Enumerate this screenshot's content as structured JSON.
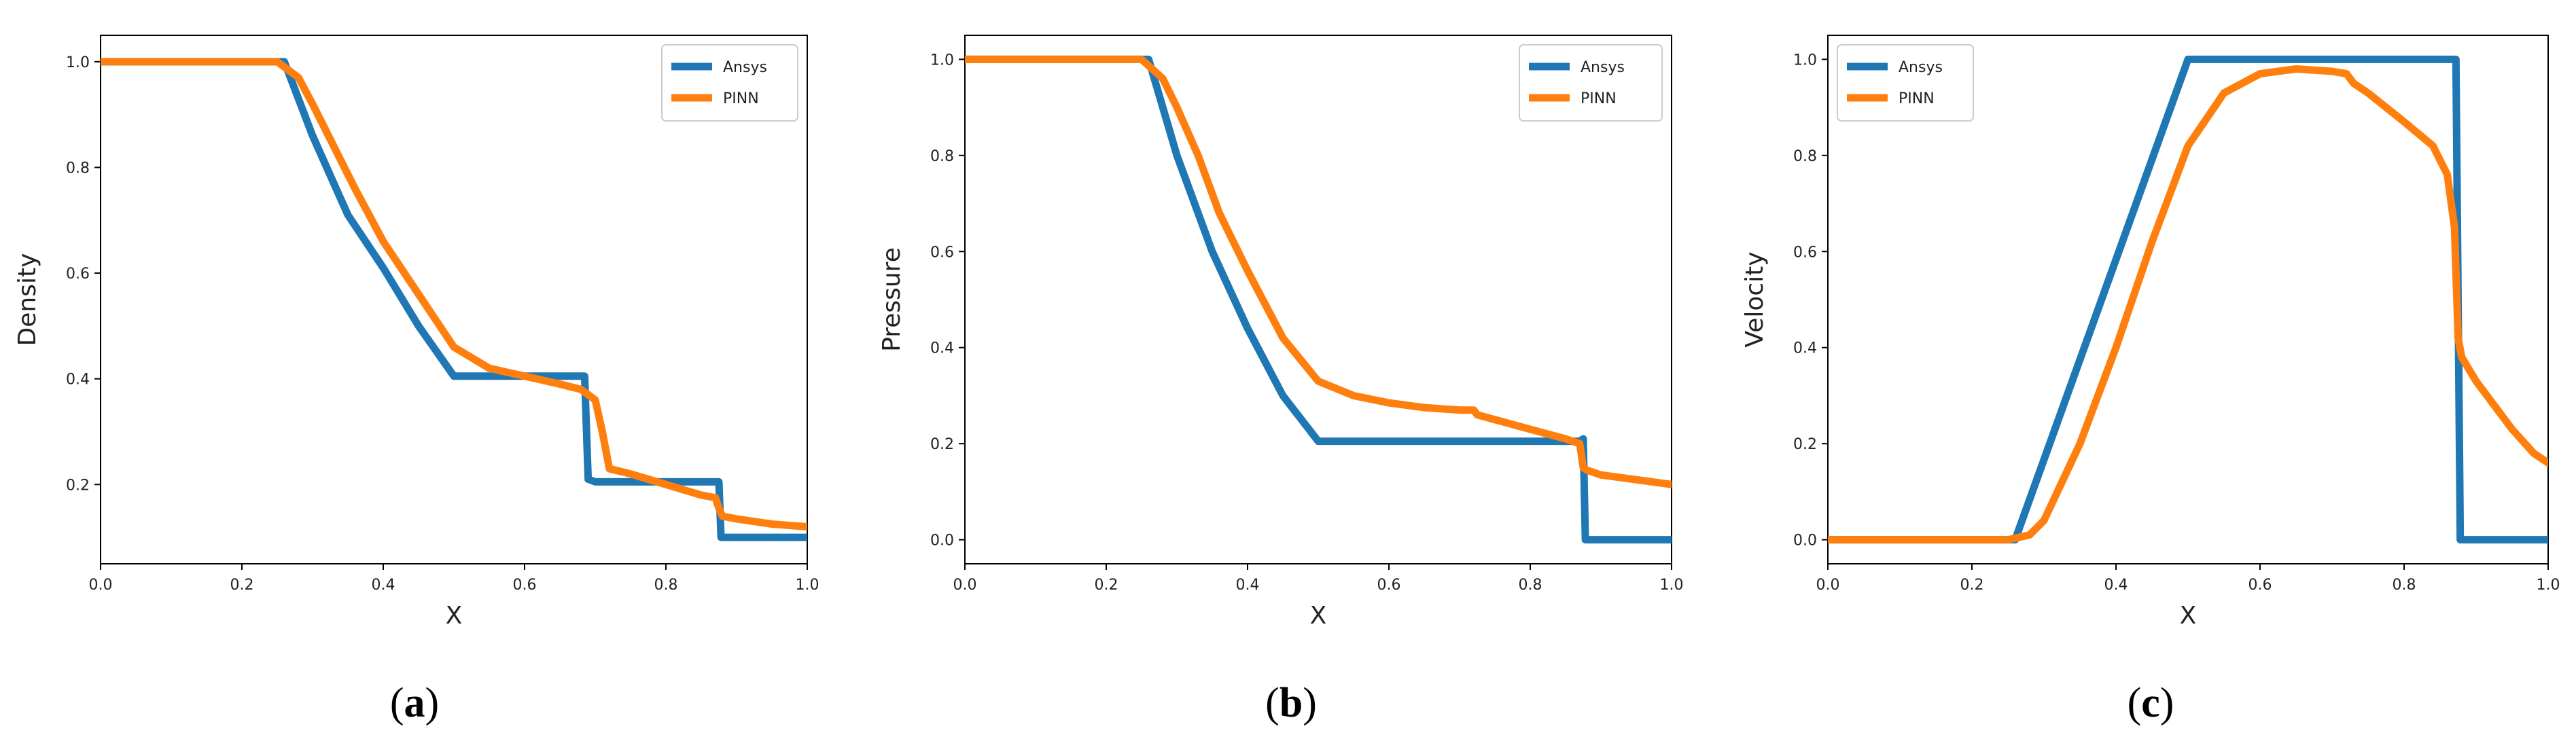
{
  "colors": {
    "ansys": "#1f77b4",
    "pinn": "#ff7f0e"
  },
  "chart_data": [
    {
      "type": "line",
      "panel": "a",
      "caption": "(a)",
      "caption_open": "(",
      "caption_letter": "a",
      "caption_close": ")",
      "xlabel": "X",
      "ylabel": "Density",
      "xlim": [
        0.0,
        1.0
      ],
      "ylim": [
        0.05,
        1.05
      ],
      "xticks": [
        0.0,
        0.2,
        0.4,
        0.6,
        0.8,
        1.0
      ],
      "xtick_labels": [
        "0.0",
        "0.2",
        "0.4",
        "0.6",
        "0.8",
        "1.0"
      ],
      "yticks": [
        0.2,
        0.4,
        0.6,
        0.8,
        1.0
      ],
      "ytick_labels": [
        "0.2",
        "0.4",
        "0.6",
        "0.8",
        "1.0"
      ],
      "grid": false,
      "legend": "top-right",
      "series": [
        {
          "name": "Ansys",
          "color": "#1f77b4",
          "x": [
            0.0,
            0.26,
            0.3,
            0.35,
            0.4,
            0.45,
            0.5,
            0.685,
            0.69,
            0.7,
            0.875,
            0.878,
            1.0
          ],
          "y": [
            1.0,
            1.0,
            0.86,
            0.71,
            0.61,
            0.5,
            0.405,
            0.405,
            0.21,
            0.205,
            0.205,
            0.1,
            0.1
          ]
        },
        {
          "name": "PINN",
          "color": "#ff7f0e",
          "x": [
            0.0,
            0.2,
            0.25,
            0.28,
            0.3,
            0.33,
            0.36,
            0.4,
            0.45,
            0.5,
            0.55,
            0.6,
            0.65,
            0.68,
            0.7,
            0.71,
            0.72,
            0.75,
            0.8,
            0.85,
            0.87,
            0.875,
            0.88,
            0.9,
            0.95,
            1.0
          ],
          "y": [
            1.0,
            1.0,
            1.0,
            0.97,
            0.92,
            0.84,
            0.76,
            0.66,
            0.56,
            0.46,
            0.42,
            0.405,
            0.39,
            0.38,
            0.36,
            0.3,
            0.23,
            0.22,
            0.2,
            0.18,
            0.175,
            0.155,
            0.14,
            0.135,
            0.125,
            0.12
          ]
        }
      ]
    },
    {
      "type": "line",
      "panel": "b",
      "caption": "(b)",
      "caption_open": "(",
      "caption_letter": "b",
      "caption_close": ")",
      "xlabel": "X",
      "ylabel": "Pressure",
      "xlim": [
        0.0,
        1.0
      ],
      "ylim": [
        -0.05,
        1.05
      ],
      "xticks": [
        0.0,
        0.2,
        0.4,
        0.6,
        0.8,
        1.0
      ],
      "xtick_labels": [
        "0.0",
        "0.2",
        "0.4",
        "0.6",
        "0.8",
        "1.0"
      ],
      "yticks": [
        0.0,
        0.2,
        0.4,
        0.6,
        0.8,
        1.0
      ],
      "ytick_labels": [
        "0.0",
        "0.2",
        "0.4",
        "0.6",
        "0.8",
        "1.0"
      ],
      "grid": false,
      "legend": "top-right",
      "series": [
        {
          "name": "Ansys",
          "color": "#1f77b4",
          "x": [
            0.0,
            0.26,
            0.3,
            0.35,
            0.4,
            0.45,
            0.5,
            0.87,
            0.875,
            0.878,
            1.0
          ],
          "y": [
            1.0,
            1.0,
            0.8,
            0.6,
            0.44,
            0.3,
            0.205,
            0.205,
            0.21,
            0.0,
            0.0
          ]
        },
        {
          "name": "PINN",
          "color": "#ff7f0e",
          "x": [
            0.0,
            0.22,
            0.25,
            0.28,
            0.3,
            0.33,
            0.36,
            0.4,
            0.45,
            0.5,
            0.55,
            0.6,
            0.65,
            0.7,
            0.72,
            0.725,
            0.75,
            0.8,
            0.85,
            0.87,
            0.875,
            0.88,
            0.9,
            0.95,
            1.0
          ],
          "y": [
            1.0,
            1.0,
            1.0,
            0.96,
            0.9,
            0.8,
            0.68,
            0.56,
            0.42,
            0.33,
            0.3,
            0.285,
            0.275,
            0.27,
            0.27,
            0.26,
            0.25,
            0.23,
            0.21,
            0.2,
            0.15,
            0.145,
            0.135,
            0.125,
            0.115
          ]
        }
      ]
    },
    {
      "type": "line",
      "panel": "c",
      "caption": "(c)",
      "caption_open": "(",
      "caption_letter": "c",
      "caption_close": ")",
      "xlabel": "X",
      "ylabel": "Velocity",
      "xlim": [
        0.0,
        1.0
      ],
      "ylim": [
        -0.05,
        1.05
      ],
      "xticks": [
        0.0,
        0.2,
        0.4,
        0.6,
        0.8,
        1.0
      ],
      "xtick_labels": [
        "0.0",
        "0.2",
        "0.4",
        "0.6",
        "0.8",
        "1.0"
      ],
      "yticks": [
        0.0,
        0.2,
        0.4,
        0.6,
        0.8,
        1.0
      ],
      "ytick_labels": [
        "0.0",
        "0.2",
        "0.4",
        "0.6",
        "0.8",
        "1.0"
      ],
      "grid": false,
      "legend": "top-left",
      "series": [
        {
          "name": "Ansys",
          "color": "#1f77b4",
          "x": [
            0.0,
            0.26,
            0.5,
            0.7,
            0.87,
            0.872,
            0.878,
            1.0
          ],
          "y": [
            0.0,
            0.0,
            1.0,
            1.0,
            1.0,
            1.0,
            0.0,
            0.0
          ]
        },
        {
          "name": "PINN",
          "color": "#ff7f0e",
          "x": [
            0.0,
            0.2,
            0.25,
            0.28,
            0.3,
            0.35,
            0.4,
            0.45,
            0.5,
            0.55,
            0.6,
            0.65,
            0.7,
            0.72,
            0.73,
            0.75,
            0.8,
            0.84,
            0.86,
            0.87,
            0.875,
            0.88,
            0.9,
            0.95,
            0.98,
            1.0
          ],
          "y": [
            0.0,
            0.0,
            0.0,
            0.01,
            0.04,
            0.2,
            0.4,
            0.62,
            0.82,
            0.93,
            0.97,
            0.98,
            0.975,
            0.97,
            0.95,
            0.93,
            0.87,
            0.82,
            0.76,
            0.65,
            0.42,
            0.38,
            0.33,
            0.23,
            0.18,
            0.16
          ]
        }
      ]
    }
  ]
}
